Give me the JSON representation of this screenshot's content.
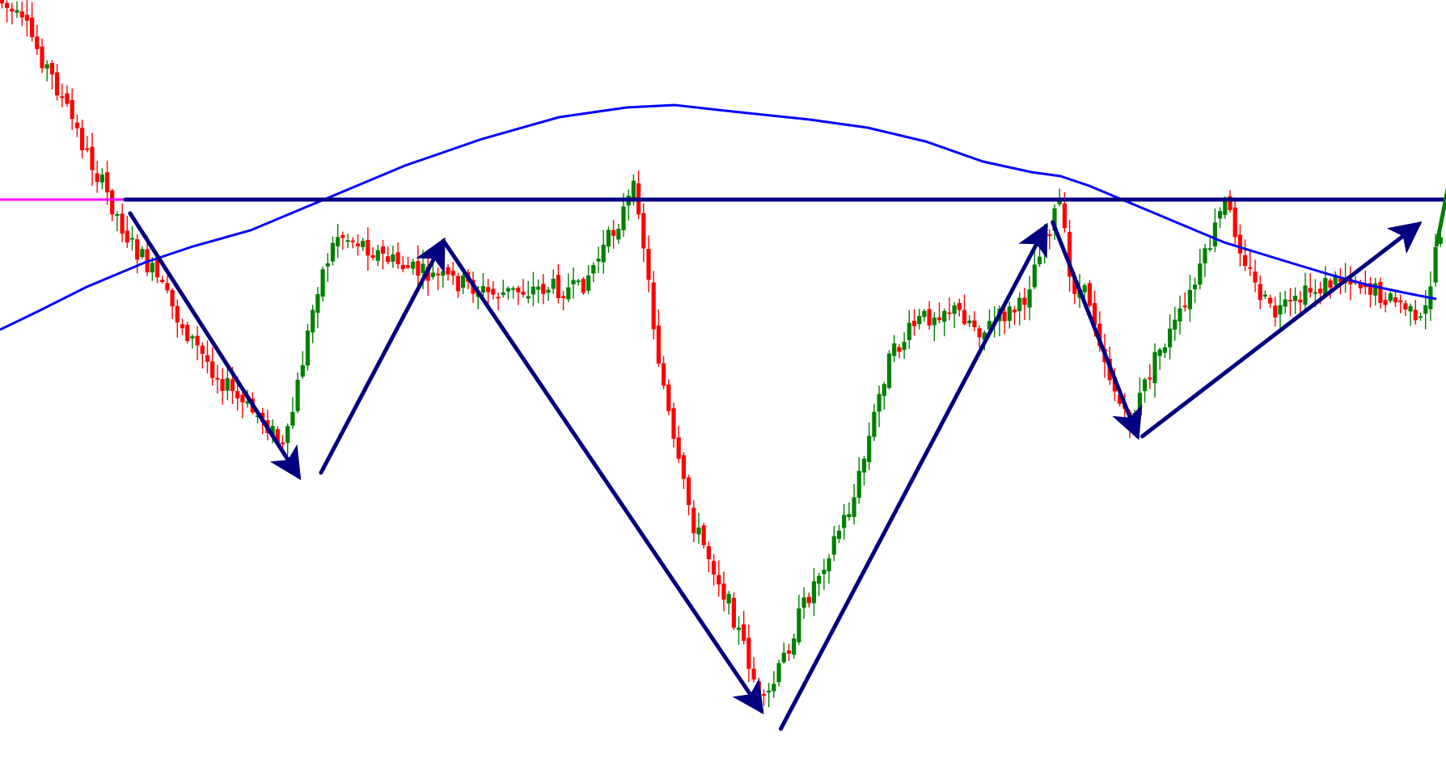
{
  "colors": {
    "background": "#ffffff",
    "bull_candle": "#008000",
    "bear_candle": "#ff0000",
    "moving_average": "#0000ff",
    "neckline": "#ff00ff",
    "pattern_arrows": "#000080",
    "breakout_arrow": "#008000"
  },
  "chart_data": {
    "type": "candlestick",
    "title": "",
    "xlabel": "",
    "ylabel": "",
    "grid": false,
    "legend": "none",
    "price_axis": "none",
    "pattern": "inverse-head-and-shoulders",
    "ylim": [
      0,
      948
    ],
    "neckline": {
      "level": 247,
      "color": "#ff00ff"
    },
    "price_path": [
      [
        0,
        0
      ],
      [
        30,
        40
      ],
      [
        60,
        110
      ],
      [
        90,
        190
      ],
      [
        115,
        250
      ],
      [
        135,
        300
      ],
      [
        160,
        340
      ],
      [
        185,
        395
      ],
      [
        210,
        440
      ],
      [
        230,
        470
      ],
      [
        250,
        500
      ],
      [
        275,
        520
      ],
      [
        295,
        560
      ],
      [
        310,
        470
      ],
      [
        330,
        350
      ],
      [
        350,
        290
      ],
      [
        375,
        300
      ],
      [
        400,
        320
      ],
      [
        440,
        340
      ],
      [
        480,
        350
      ],
      [
        510,
        365
      ],
      [
        540,
        360
      ],
      [
        570,
        355
      ],
      [
        600,
        360
      ],
      [
        630,
        300
      ],
      [
        660,
        230
      ],
      [
        680,
        420
      ],
      [
        700,
        560
      ],
      [
        720,
        650
      ],
      [
        740,
        700
      ],
      [
        760,
        760
      ],
      [
        780,
        830
      ],
      [
        790,
        880
      ],
      [
        805,
        840
      ],
      [
        830,
        760
      ],
      [
        860,
        680
      ],
      [
        885,
        620
      ],
      [
        900,
        550
      ],
      [
        920,
        450
      ],
      [
        950,
        400
      ],
      [
        980,
        380
      ],
      [
        1000,
        390
      ],
      [
        1020,
        410
      ],
      [
        1040,
        390
      ],
      [
        1060,
        380
      ],
      [
        1080,
        300
      ],
      [
        1100,
        250
      ],
      [
        1110,
        350
      ],
      [
        1130,
        370
      ],
      [
        1150,
        460
      ],
      [
        1170,
        530
      ],
      [
        1180,
        500
      ],
      [
        1200,
        440
      ],
      [
        1230,
        380
      ],
      [
        1250,
        320
      ],
      [
        1270,
        250
      ],
      [
        1280,
        280
      ],
      [
        1300,
        350
      ],
      [
        1320,
        390
      ],
      [
        1340,
        380
      ],
      [
        1360,
        360
      ],
      [
        1380,
        350
      ],
      [
        1400,
        340
      ],
      [
        1420,
        355
      ],
      [
        1440,
        370
      ],
      [
        1460,
        380
      ],
      [
        1470,
        410
      ],
      [
        1480,
        380
      ],
      [
        1490,
        300
      ],
      [
        1500,
        270
      ]
    ],
    "moving_average": [
      [
        0,
        408
      ],
      [
        40,
        385
      ],
      [
        90,
        355
      ],
      [
        150,
        325
      ],
      [
        200,
        305
      ],
      [
        260,
        285
      ],
      [
        330,
        250
      ],
      [
        420,
        205
      ],
      [
        500,
        172
      ],
      [
        580,
        145
      ],
      [
        650,
        133
      ],
      [
        700,
        130
      ],
      [
        760,
        138
      ],
      [
        840,
        148
      ],
      [
        900,
        158
      ],
      [
        960,
        175
      ],
      [
        1020,
        200
      ],
      [
        1070,
        213
      ],
      [
        1100,
        218
      ],
      [
        1130,
        230
      ],
      [
        1170,
        250
      ],
      [
        1220,
        275
      ],
      [
        1270,
        300
      ],
      [
        1330,
        322
      ],
      [
        1380,
        340
      ],
      [
        1420,
        353
      ],
      [
        1460,
        363
      ],
      [
        1490,
        370
      ]
    ],
    "zigzag": [
      {
        "from": [
          135,
          264
        ],
        "to": [
          310,
          590
        ]
      },
      {
        "from": [
          333,
          585
        ],
        "to": [
          460,
          298
        ]
      },
      {
        "from": [
          460,
          298
        ],
        "to": [
          790,
          880
        ]
      },
      {
        "from": [
          810,
          902
        ],
        "to": [
          1085,
          280
        ]
      },
      {
        "from": [
          1092,
          275
        ],
        "to": [
          1180,
          540
        ]
      },
      {
        "from": [
          1185,
          540
        ],
        "to": [
          1472,
          277
        ]
      },
      {
        "from": [
          130,
          247
        ],
        "to": [
          1622,
          247
        ]
      }
    ],
    "breakout": {
      "from": [
        1490,
        305
      ],
      "to": [
        1535,
        33
      ]
    }
  }
}
